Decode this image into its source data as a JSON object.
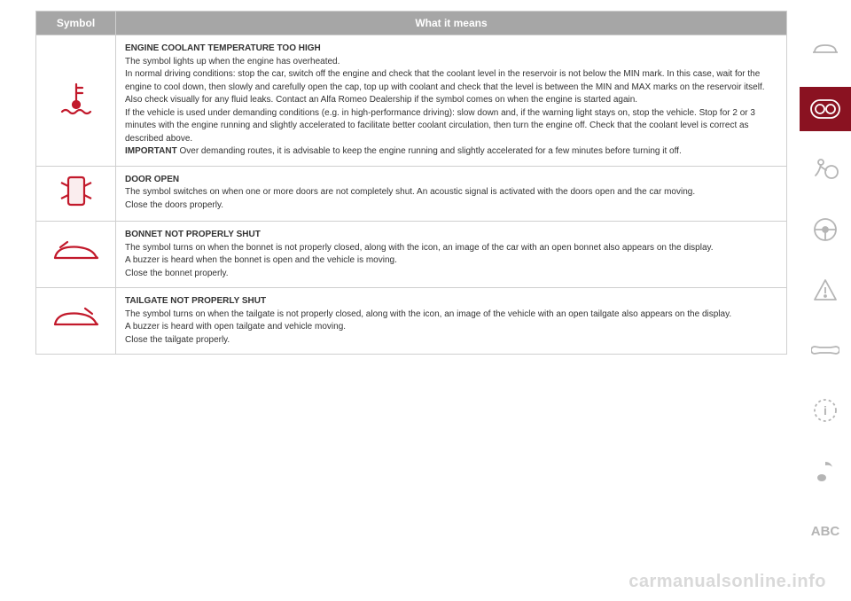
{
  "table": {
    "header": {
      "symbol": "Symbol",
      "meaning": "What it means"
    },
    "rows": [
      {
        "icon": "coolant",
        "title": "ENGINE COOLANT TEMPERATURE TOO HIGH",
        "body": "The symbol lights up when the engine has overheated.\nIn normal driving conditions: stop the car, switch off the engine and check that the coolant level in the reservoir is not below the MIN mark. In this case, wait for the engine to cool down, then slowly and carefully open the cap, top up with coolant and check that the level is between the MIN and MAX marks on the reservoir itself. Also check visually for any fluid leaks. Contact an Alfa Romeo Dealership if the symbol comes on when the engine is started again.\nIf the vehicle is used under demanding conditions (e.g. in high-performance driving): slow down and, if the warning light stays on, stop the vehicle. Stop for 2 or 3 minutes with the engine running and slightly accelerated to facilitate better coolant circulation, then turn the engine off. Check that the coolant level is correct as described above.\nIMPORTANT Over demanding routes, it is advisable to keep the engine running and slightly accelerated for a few minutes before turning it off."
      },
      {
        "icon": "door",
        "title": "DOOR OPEN",
        "body": "The symbol switches on when one or more doors are not completely shut. An acoustic signal is activated with the doors open and the car moving.\nClose the doors properly."
      },
      {
        "icon": "bonnet",
        "title": "BONNET NOT PROPERLY SHUT",
        "body": "The symbol turns on when the bonnet is not properly closed, along with the icon, an image of the car with an open bonnet also appears on the display.\nA buzzer is heard when the bonnet is open and the vehicle is moving.\nClose the bonnet properly."
      },
      {
        "icon": "tailgate",
        "title": "TAILGATE NOT PROPERLY SHUT",
        "body": "The symbol turns on when the tailgate is not properly closed, along with the icon, an image of the vehicle with an open tailgate also appears on the display.\nA buzzer is heard with open tailgate and vehicle moving.\nClose the tailgate properly."
      }
    ]
  },
  "sidebar": {
    "items": [
      {
        "name": "car-front-icon",
        "active": false
      },
      {
        "name": "dashboard-icon",
        "active": true
      },
      {
        "name": "airbag-icon",
        "active": false
      },
      {
        "name": "steering-wheel-icon",
        "active": false
      },
      {
        "name": "warning-triangle-icon",
        "active": false
      },
      {
        "name": "wrench-icon",
        "active": false
      },
      {
        "name": "info-icon",
        "active": false
      },
      {
        "name": "music-note-icon",
        "active": false
      },
      {
        "name": "abc-label",
        "active": false,
        "label": "ABC"
      }
    ]
  },
  "watermark": "carmanualsonline.info",
  "colors": {
    "header_bg": "#a6a6a6",
    "border": "#cfcfcf",
    "icon_red": "#c2192b",
    "sidebar_active_bg": "#8a1221",
    "sidebar_inactive": "#b5b5b5",
    "watermark": "#d9d9d9"
  }
}
